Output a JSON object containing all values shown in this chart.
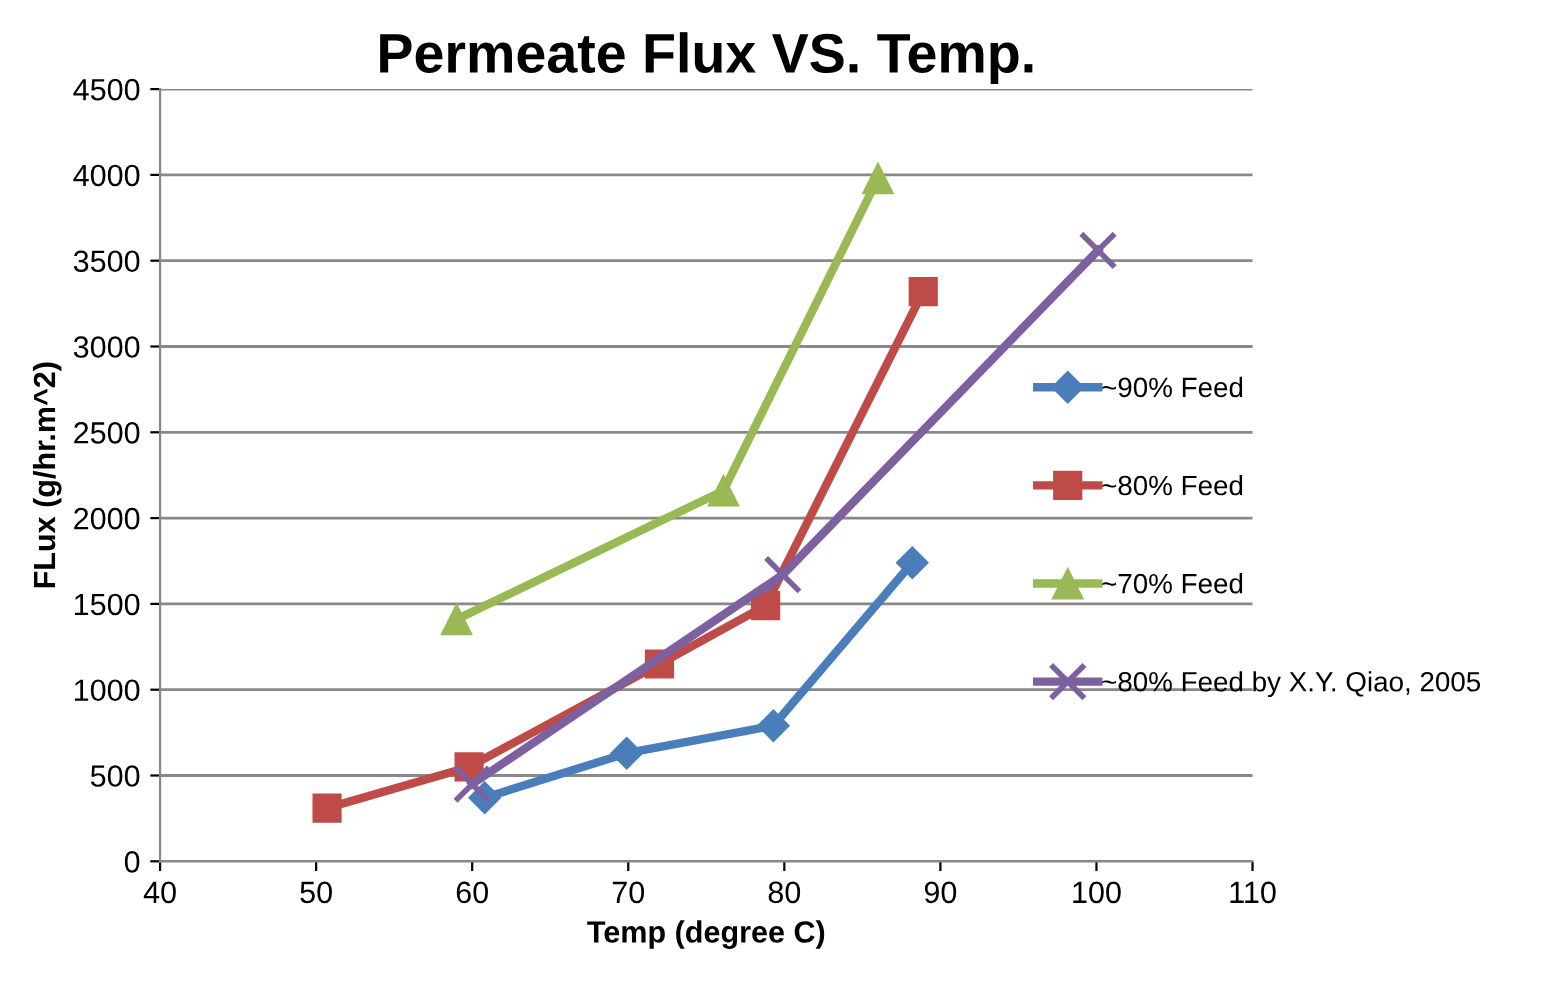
{
  "chart_data": {
    "type": "line",
    "title": "Permeate Flux VS. Temp.",
    "xlabel": "Temp (degree C)",
    "ylabel": "FLux (g/hr.m^2)",
    "xlim": [
      40,
      110
    ],
    "xticks": [
      40,
      50,
      60,
      70,
      80,
      90,
      100,
      110
    ],
    "ylim": [
      0,
      4500
    ],
    "yticks": [
      0,
      500,
      1000,
      1500,
      2000,
      2500,
      3000,
      3500,
      4000,
      4500
    ],
    "grid": "y",
    "legend": "right",
    "series": [
      {
        "name": "~90% Feed",
        "color": "#4a7ebb",
        "marker": "diamond",
        "x": [
          60.8,
          69.9,
          79.3,
          88.2
        ],
        "values": [
          370,
          630,
          790,
          1740
        ]
      },
      {
        "name": "~80% Feed",
        "color": "#be4b48",
        "marker": "square",
        "x": [
          50.7,
          59.8,
          72.0,
          78.8,
          88.9
        ],
        "values": [
          310,
          550,
          1150,
          1490,
          3320
        ]
      },
      {
        "name": "~70% Feed",
        "color": "#98b954",
        "marker": "triangle",
        "x": [
          59.0,
          76.1,
          86.0
        ],
        "values": [
          1410,
          2160,
          3980
        ]
      },
      {
        "name": "~80% Feed by X.Y. Qiao, 2005",
        "color": "#7d60a0",
        "marker": "cross",
        "x": [
          60.0,
          79.9,
          100.1
        ],
        "values": [
          450,
          1670,
          3560
        ]
      }
    ]
  }
}
